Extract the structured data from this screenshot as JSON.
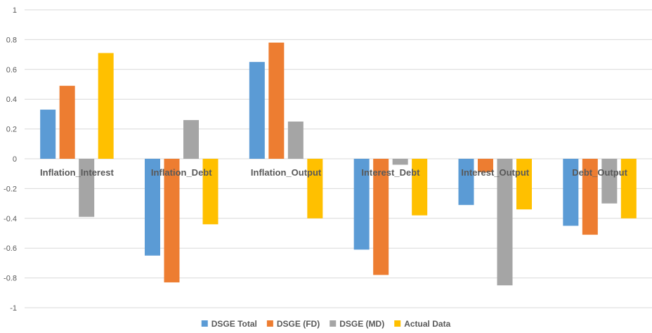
{
  "chart_data": {
    "type": "bar",
    "categories": [
      "Inflation_Interest",
      "Inflation_Debt",
      "Inflation_Output",
      "Interest_Debt",
      "Interest_Output",
      "Debt_Output"
    ],
    "series": [
      {
        "name": "DSGE Total",
        "color": "#5b9bd5",
        "values": [
          0.33,
          -0.65,
          0.65,
          -0.61,
          -0.31,
          -0.45
        ]
      },
      {
        "name": "DSGE (FD)",
        "color": "#ed7d31",
        "values": [
          0.49,
          -0.83,
          0.78,
          -0.78,
          -0.09,
          -0.51
        ]
      },
      {
        "name": "DSGE (MD)",
        "color": "#a5a5a5",
        "values": [
          -0.39,
          0.26,
          0.25,
          -0.04,
          -0.85,
          -0.3
        ]
      },
      {
        "name": "Actual Data",
        "color": "#ffc000",
        "values": [
          0.71,
          -0.44,
          -0.4,
          -0.38,
          -0.34,
          -0.4
        ]
      }
    ],
    "yticks": [
      "1",
      "0.8",
      "0.6",
      "0.4",
      "0.2",
      "0",
      "-0.2",
      "-0.4",
      "-0.6",
      "-0.8",
      "-1"
    ],
    "ylim": [
      -1,
      1
    ],
    "title": "",
    "xlabel": "",
    "ylabel": "",
    "grid": true,
    "legend_position": "bottom"
  }
}
